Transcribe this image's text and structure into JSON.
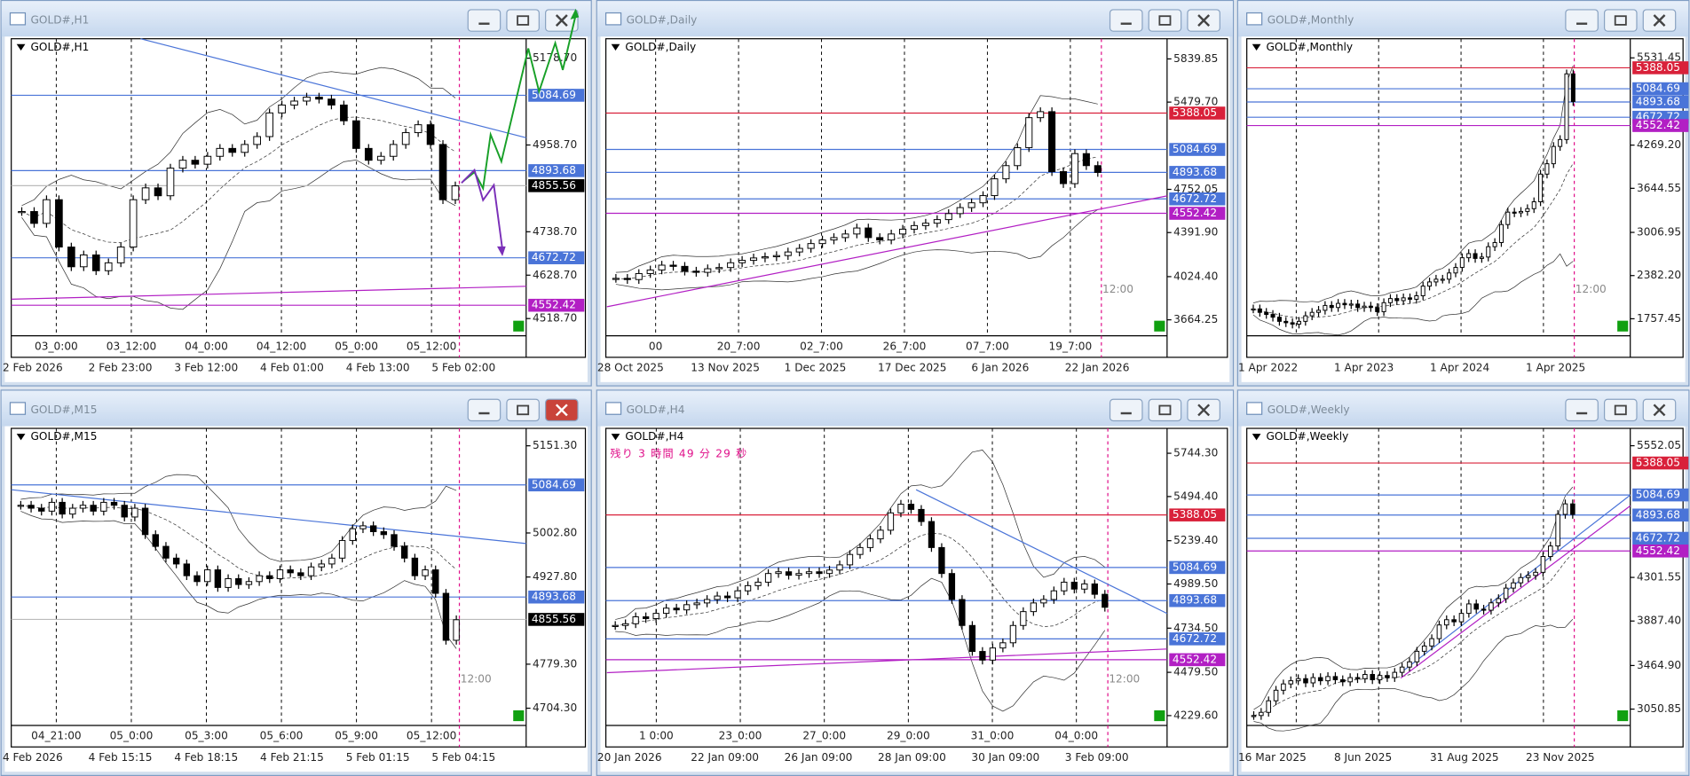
{
  "windows": [
    {
      "symbol": "GOLD#,H1",
      "ylim": [
        4475,
        5228
      ],
      "yticks": [
        {
          "value": 5178.7,
          "label": "5178.70"
        },
        {
          "value": 4958.7,
          "label": "4958.70"
        },
        {
          "value": 4738.7,
          "label": "4738.70"
        },
        {
          "value": 4628.7,
          "label": "4628.70"
        },
        {
          "value": 4518.7,
          "label": "4518.70"
        }
      ],
      "levels": [
        {
          "value": 5084.69,
          "color": "#4a74d8"
        },
        {
          "value": 4893.68,
          "color": "#4a74d8"
        },
        {
          "value": 4672.72,
          "color": "#4a74d8"
        },
        {
          "value": 4552.42,
          "color": "#b21fc4"
        }
      ],
      "current": 4855.56,
      "time_top": [
        "03_0:00",
        "03_12:00",
        "04_0:00",
        "04_12:00",
        "05_0:00",
        "05_12:00"
      ],
      "time_bottom": [
        "2 Feb 2026",
        "2 Feb 23:00",
        "3 Feb 12:00",
        "4 Feb 01:00",
        "4 Feb 13:00",
        "5 Feb 02:00"
      ],
      "closes": [
        4790,
        4760,
        4820,
        4700,
        4650,
        4680,
        4640,
        4660,
        4700,
        4820,
        4850,
        4830,
        4900,
        4920,
        4910,
        4930,
        4950,
        4940,
        4960,
        4980,
        5040,
        5060,
        5070,
        5080,
        5075,
        5060,
        5020,
        4950,
        4920,
        4930,
        4960,
        4990,
        5010,
        4960,
        4820,
        4855
      ]
    },
    {
      "symbol": "GOLD#,Daily",
      "ylim": [
        3531,
        6008
      ],
      "yticks": [
        {
          "value": 5839.85,
          "label": "5839.85"
        },
        {
          "value": 5479.7,
          "label": "5479.70"
        },
        4752.05,
        {
          "value": 4391.9,
          "label": "4391.90"
        },
        {
          "value": 4024.4,
          "label": "4024.40"
        },
        3664.25
      ],
      "levels": [
        {
          "value": 5388.05,
          "color": "#d9213a"
        },
        {
          "value": 5084.69,
          "color": "#4a74d8"
        },
        {
          "value": 4893.68,
          "color": "#4a74d8"
        },
        {
          "value": 4672.72,
          "color": "#4a74d8"
        },
        {
          "value": 4552.42,
          "color": "#b21fc4"
        }
      ],
      "time_top": [
        "00",
        "20_7:00",
        "02_7:00",
        "26_7:00",
        "07_7:00",
        "19_7:00"
      ],
      "time_bottom": [
        "28 Oct 2025",
        "13 Nov 2025",
        "1 Dec 2025",
        "17 Dec 2025",
        "6 Jan 2026",
        "22 Jan 2026"
      ],
      "time_marker": "12:00",
      "closes": [
        4010,
        4000,
        4050,
        4080,
        4120,
        4110,
        4070,
        4060,
        4090,
        4100,
        4140,
        4160,
        4180,
        4190,
        4200,
        4230,
        4260,
        4300,
        4330,
        4350,
        4380,
        4430,
        4350,
        4330,
        4380,
        4420,
        4450,
        4470,
        4500,
        4550,
        4600,
        4640,
        4700,
        4840,
        4950,
        5100,
        5350,
        5400,
        4900,
        4800,
        5050,
        4950,
        4893
      ]
    },
    {
      "symbol": "GOLD#,Monthly",
      "ylim": [
        1511,
        5808
      ],
      "yticks": [
        5531.45,
        {
          "value": 4269.2,
          "label": "4269.20"
        },
        3644.55,
        3006.95,
        {
          "value": 2382.2,
          "label": "2382.20"
        },
        1757.45
      ],
      "levels": [
        {
          "value": 5388.05,
          "color": "#d9213a"
        },
        {
          "value": 5084.69,
          "color": "#4a74d8"
        },
        {
          "value": 4893.68,
          "color": "#4a74d8"
        },
        {
          "value": 4672.72,
          "color": "#4a74d8"
        },
        {
          "value": 4552.42,
          "color": "#b21fc4"
        }
      ],
      "time_top": [],
      "time_bottom": [
        "1 Apr 2022",
        "1 Apr 2023",
        "1 Apr 2024",
        "1 Apr 2025"
      ],
      "time_marker": "12:00",
      "closes": [
        1900,
        1850,
        1820,
        1780,
        1720,
        1700,
        1680,
        1720,
        1800,
        1850,
        1880,
        1950,
        1920,
        1980,
        1960,
        1970,
        1920,
        1940,
        1920,
        1860,
        1990,
        2050,
        2020,
        2060,
        2040,
        2090,
        2230,
        2290,
        2330,
        2330,
        2420,
        2500,
        2640,
        2700,
        2630,
        2650,
        2800,
        2860,
        3120,
        3300,
        3290,
        3310,
        3350,
        3450,
        3850,
        4000,
        4250,
        4350,
        5300,
        4900
      ]
    },
    {
      "symbol": "GOLD#,M15",
      "ylim": [
        4675,
        5181
      ],
      "yticks": [
        {
          "value": 5151.3,
          "label": "5151.30"
        },
        {
          "value": 5002.8,
          "label": "5002.80"
        },
        {
          "value": 4927.8,
          "label": "4927.80"
        },
        {
          "value": 4779.3,
          "label": "4779.30"
        },
        {
          "value": 4704.3,
          "label": "4704.30"
        }
      ],
      "levels": [
        {
          "value": 5084.69,
          "color": "#4a74d8"
        },
        {
          "value": 4893.68,
          "color": "#4a74d8"
        }
      ],
      "current": 4855.56,
      "time_top": [
        "04_21:00",
        "05_0:00",
        "05_3:00",
        "05_6:00",
        "05_9:00",
        "05_12:00"
      ],
      "time_bottom": [
        "4 Feb 2026",
        "4 Feb 15:15",
        "4 Feb 18:15",
        "4 Feb 21:15",
        "5 Feb 01:15",
        "5 Feb 04:15"
      ],
      "time_marker": "12:00",
      "closes": [
        5050,
        5045,
        5040,
        5055,
        5035,
        5045,
        5050,
        5040,
        5055,
        5050,
        5030,
        5045,
        5000,
        4980,
        4960,
        4950,
        4930,
        4920,
        4940,
        4910,
        4925,
        4915,
        4920,
        4930,
        4925,
        4940,
        4935,
        4930,
        4945,
        4950,
        4960,
        4990,
        5010,
        5015,
        5005,
        5000,
        4980,
        4960,
        4930,
        4940,
        4900,
        4820,
        4855
      ]
    },
    {
      "symbol": "GOLD#,H4",
      "ylim": [
        4173,
        5888
      ],
      "yticks": [
        {
          "value": 5744.3,
          "label": "5744.30"
        },
        {
          "value": 5494.4,
          "label": "5494.40"
        },
        {
          "value": 5239.4,
          "label": "5239.40"
        },
        {
          "value": 4989.5,
          "label": "4989.50"
        },
        {
          "value": 4734.5,
          "label": "4734.50"
        },
        {
          "value": 4479.5,
          "label": "4479.50"
        },
        {
          "value": 4229.6,
          "label": "4229.60"
        }
      ],
      "levels": [
        {
          "value": 5388.05,
          "color": "#d9213a"
        },
        {
          "value": 5084.69,
          "color": "#4a74d8"
        },
        {
          "value": 4893.68,
          "color": "#4a74d8"
        },
        {
          "value": 4672.72,
          "color": "#4a74d8"
        },
        {
          "value": 4552.42,
          "color": "#b21fc4"
        }
      ],
      "countdown": "残り 3 時間 49 分 29 秒",
      "time_top": [
        "1 0:00",
        "23_0:00",
        "27_0:00",
        "29_0:00",
        "31_0:00",
        "04_0:00"
      ],
      "time_bottom": [
        "20 Jan 2026",
        "22 Jan 09:00",
        "26 Jan 09:00",
        "28 Jan 09:00",
        "30 Jan 09:00",
        "3 Feb 09:00"
      ],
      "time_marker": "12:00",
      "closes": [
        4750,
        4760,
        4800,
        4790,
        4820,
        4850,
        4840,
        4870,
        4880,
        4900,
        4920,
        4910,
        4950,
        4980,
        5000,
        5050,
        5060,
        5040,
        5050,
        5060,
        5050,
        5070,
        5100,
        5160,
        5200,
        5250,
        5300,
        5400,
        5450,
        5420,
        5350,
        5200,
        5050,
        4900,
        4750,
        4600,
        4550,
        4620,
        4650,
        4750,
        4830,
        4880,
        4900,
        4950,
        5000,
        4960,
        4990,
        4930,
        4855
      ]
    },
    {
      "symbol": "GOLD#,Weekly",
      "ylim": [
        2896,
        5717
      ],
      "yticks": [
        5552.05,
        4301.55,
        {
          "value": 3887.4,
          "label": "3887.40"
        },
        {
          "value": 3464.9,
          "label": "3464.90"
        },
        3050.85
      ],
      "levels": [
        {
          "value": 5388.05,
          "color": "#d9213a"
        },
        {
          "value": 5084.69,
          "color": "#4a74d8"
        },
        {
          "value": 4893.68,
          "color": "#4a74d8"
        },
        {
          "value": 4672.72,
          "color": "#4a74d8"
        },
        {
          "value": 4552.42,
          "color": "#b21fc4"
        }
      ],
      "time_top": [],
      "time_bottom": [
        "16 Mar 2025",
        "8 Jun 2025",
        "31 Aug 2025",
        "23 Nov 2025"
      ],
      "closes": [
        2990,
        3020,
        3130,
        3230,
        3290,
        3320,
        3340,
        3300,
        3350,
        3320,
        3360,
        3330,
        3310,
        3350,
        3340,
        3380,
        3330,
        3370,
        3350,
        3400,
        3450,
        3500,
        3600,
        3650,
        3720,
        3850,
        3900,
        3880,
        3960,
        4050,
        4000,
        3990,
        4060,
        4100,
        4200,
        4250,
        4300,
        4320,
        4350,
        4500,
        4600,
        4900,
        5000,
        4900
      ]
    }
  ]
}
